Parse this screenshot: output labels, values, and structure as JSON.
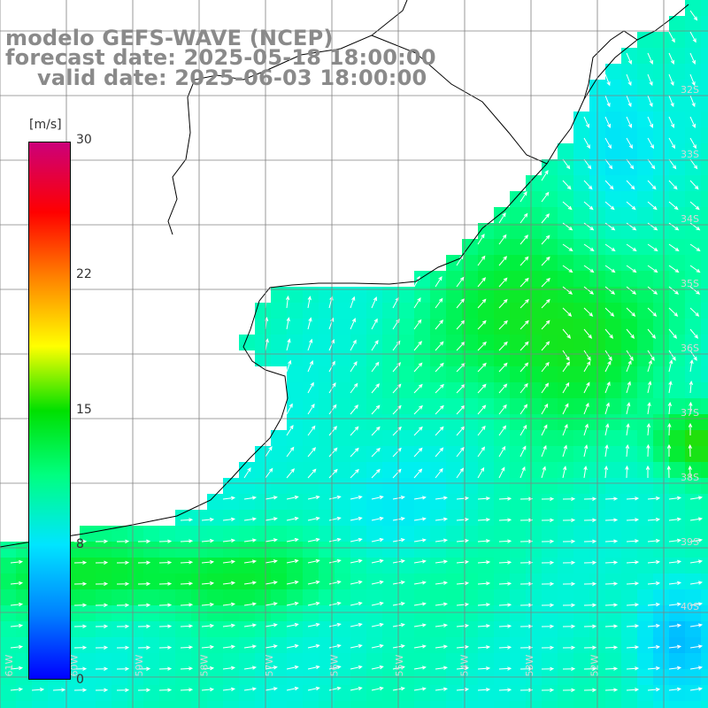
{
  "title": {
    "line1": "modelo GEFS-WAVE (NCEP)",
    "line2": "forecast date: 2025-05-18 18:00:00",
    "line3": "valid date: 2025-06-03 18:00:00"
  },
  "colorbar": {
    "unit": "[m/s]",
    "ticks": [
      "30",
      "22",
      "15",
      "8",
      "0"
    ],
    "colors": [
      "#0000ff",
      "#0080ff",
      "#00e5ff",
      "#00ff80",
      "#00e000",
      "#ffff00",
      "#ff8000",
      "#ff0000",
      "#cc007a"
    ]
  },
  "lat_labels": [
    "32S",
    "33S",
    "34S",
    "35S",
    "36S",
    "37S",
    "38S",
    "39S",
    "40S"
  ],
  "lon_labels": [
    "61W",
    "60W",
    "59W",
    "58W",
    "57W",
    "56W",
    "55W",
    "54W",
    "53W",
    "52W"
  ],
  "colors": {
    "land": "#ffffff",
    "grid": "#808080",
    "coast": "#000000",
    "arrow": "#ffffff",
    "title": "#8a8a8a"
  }
}
